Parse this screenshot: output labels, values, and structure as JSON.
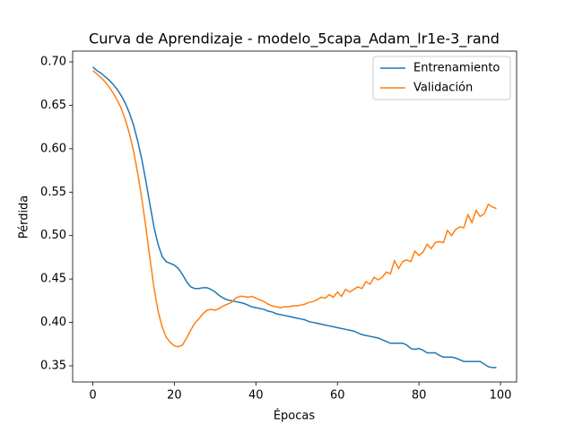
{
  "chart_data": {
    "type": "line",
    "title": "Curva de Aprendizaje - modelo_5capa_Adam_lr1e-3_rand",
    "xlabel": "Épocas",
    "ylabel": "Pérdida",
    "x": [
      0,
      1,
      2,
      3,
      4,
      5,
      6,
      7,
      8,
      9,
      10,
      11,
      12,
      13,
      14,
      15,
      16,
      17,
      18,
      19,
      20,
      21,
      22,
      23,
      24,
      25,
      26,
      27,
      28,
      29,
      30,
      31,
      32,
      33,
      34,
      35,
      36,
      37,
      38,
      39,
      40,
      41,
      42,
      43,
      44,
      45,
      46,
      47,
      48,
      49,
      50,
      51,
      52,
      53,
      54,
      55,
      56,
      57,
      58,
      59,
      60,
      61,
      62,
      63,
      64,
      65,
      66,
      67,
      68,
      69,
      70,
      71,
      72,
      73,
      74,
      75,
      76,
      77,
      78,
      79,
      80,
      81,
      82,
      83,
      84,
      85,
      86,
      87,
      88,
      89,
      90,
      91,
      92,
      93,
      94,
      95,
      96,
      97,
      98,
      99
    ],
    "series": [
      {
        "name": "Entrenamiento",
        "color": "#1f77b4",
        "values": [
          0.694,
          0.69,
          0.687,
          0.683,
          0.679,
          0.674,
          0.668,
          0.661,
          0.652,
          0.641,
          0.627,
          0.609,
          0.588,
          0.563,
          0.536,
          0.51,
          0.49,
          0.476,
          0.47,
          0.468,
          0.466,
          0.462,
          0.455,
          0.447,
          0.441,
          0.439,
          0.439,
          0.44,
          0.44,
          0.438,
          0.435,
          0.431,
          0.428,
          0.426,
          0.425,
          0.424,
          0.423,
          0.422,
          0.42,
          0.418,
          0.417,
          0.416,
          0.415,
          0.413,
          0.412,
          0.41,
          0.409,
          0.408,
          0.407,
          0.406,
          0.405,
          0.404,
          0.403,
          0.401,
          0.4,
          0.399,
          0.398,
          0.397,
          0.396,
          0.395,
          0.394,
          0.393,
          0.392,
          0.391,
          0.39,
          0.388,
          0.386,
          0.385,
          0.384,
          0.383,
          0.382,
          0.38,
          0.378,
          0.376,
          0.376,
          0.376,
          0.376,
          0.374,
          0.37,
          0.369,
          0.37,
          0.368,
          0.365,
          0.365,
          0.365,
          0.362,
          0.36,
          0.36,
          0.36,
          0.359,
          0.357,
          0.355,
          0.355,
          0.355,
          0.355,
          0.355,
          0.352,
          0.349,
          0.348,
          0.348
        ]
      },
      {
        "name": "Validación",
        "color": "#ff7f0e",
        "values": [
          0.69,
          0.686,
          0.682,
          0.677,
          0.671,
          0.664,
          0.656,
          0.646,
          0.633,
          0.617,
          0.597,
          0.572,
          0.543,
          0.51,
          0.474,
          0.44,
          0.413,
          0.395,
          0.383,
          0.377,
          0.373,
          0.372,
          0.374,
          0.382,
          0.391,
          0.399,
          0.404,
          0.41,
          0.414,
          0.415,
          0.414,
          0.416,
          0.419,
          0.421,
          0.423,
          0.428,
          0.43,
          0.43,
          0.429,
          0.43,
          0.428,
          0.426,
          0.424,
          0.421,
          0.419,
          0.418,
          0.417,
          0.418,
          0.418,
          0.419,
          0.419,
          0.42,
          0.421,
          0.423,
          0.424,
          0.426,
          0.429,
          0.428,
          0.432,
          0.429,
          0.435,
          0.43,
          0.438,
          0.435,
          0.438,
          0.441,
          0.439,
          0.447,
          0.444,
          0.452,
          0.449,
          0.452,
          0.458,
          0.456,
          0.471,
          0.462,
          0.47,
          0.472,
          0.47,
          0.482,
          0.477,
          0.481,
          0.49,
          0.485,
          0.492,
          0.493,
          0.492,
          0.506,
          0.5,
          0.507,
          0.51,
          0.509,
          0.524,
          0.515,
          0.529,
          0.522,
          0.525,
          0.536,
          0.533,
          0.531
        ]
      }
    ],
    "xlim": [
      -4.95,
      103.95
    ],
    "xticks": [
      0,
      20,
      40,
      60,
      80,
      100
    ],
    "ylim": [
      0.3314,
      0.7124
    ],
    "yticks": [
      0.35,
      {
        "value": 0.4,
        "label": "0.40"
      },
      0.45,
      {
        "value": 0.5,
        "label": "0.50"
      },
      0.55,
      {
        "value": 0.6,
        "label": "0.60"
      },
      0.65,
      {
        "value": 0.7,
        "label": "0.70"
      }
    ],
    "grid": false,
    "legend": "upper right"
  }
}
